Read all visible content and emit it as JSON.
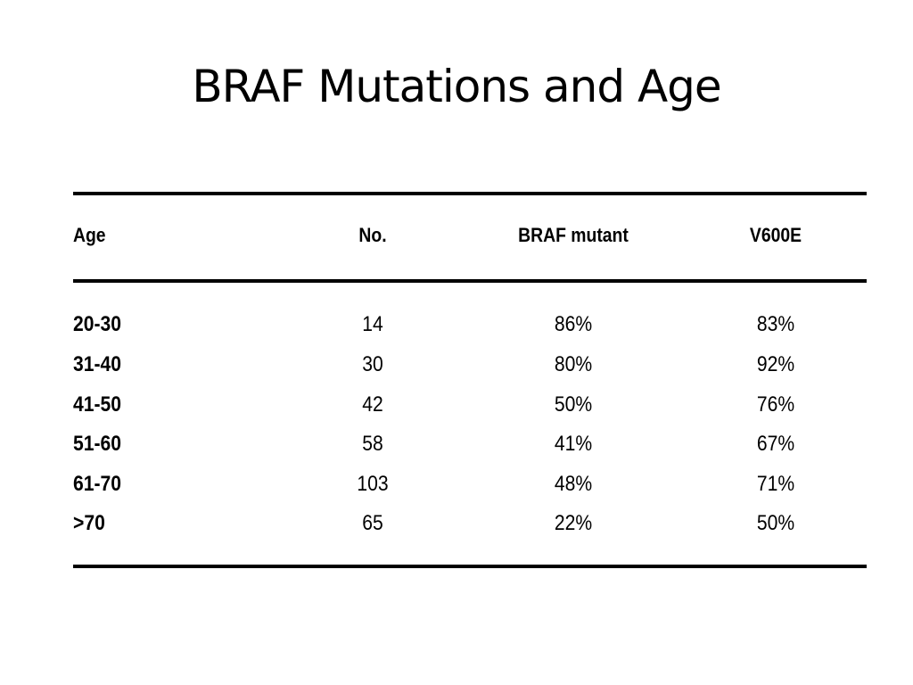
{
  "slide": {
    "title": "BRAF Mutations and Age"
  },
  "table": {
    "headers": [
      "Age",
      "No.",
      "BRAF mutant",
      "V600E"
    ],
    "rows": [
      [
        "20-30",
        "14",
        "86%",
        "83%"
      ],
      [
        "31-40",
        "30",
        "80%",
        "92%"
      ],
      [
        "41-50",
        "42",
        "50%",
        "76%"
      ],
      [
        "51-60",
        "58",
        "41%",
        "67%"
      ],
      [
        "61-70",
        "103",
        "48%",
        "71%"
      ],
      [
        ">70",
        "65",
        "22%",
        "50%"
      ]
    ]
  }
}
